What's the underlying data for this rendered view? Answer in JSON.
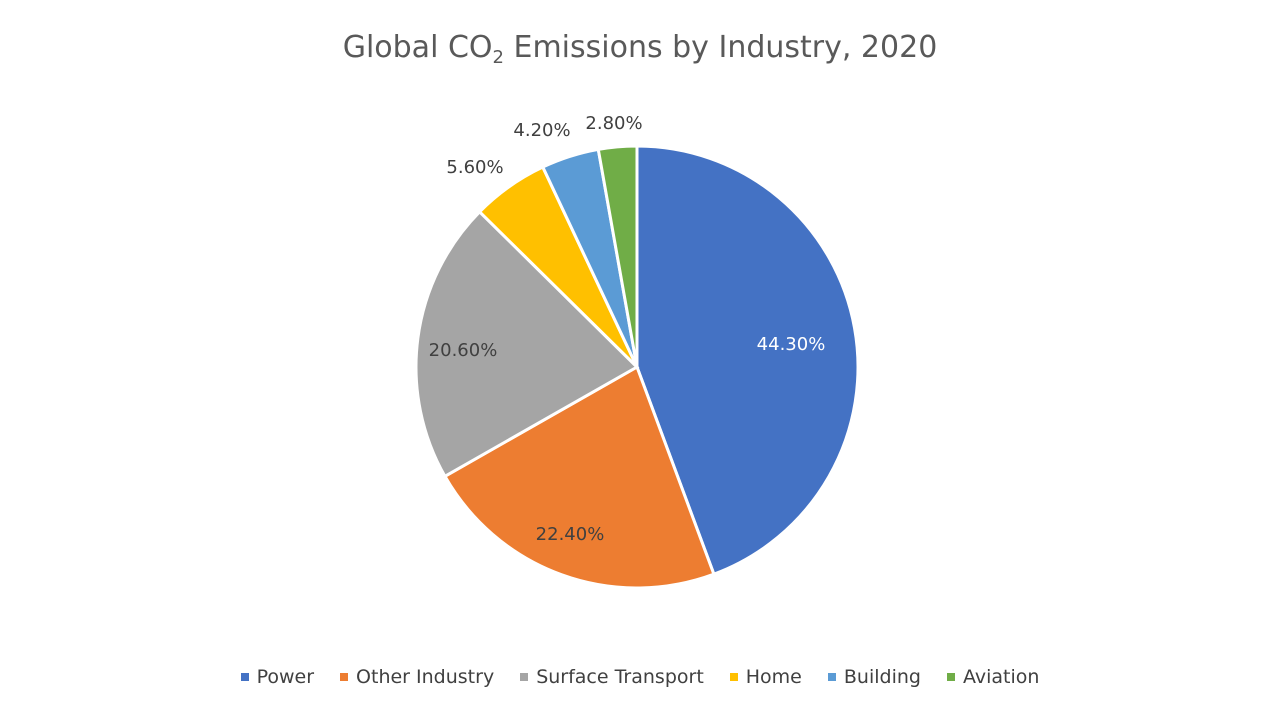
{
  "chart_data": {
    "type": "pie",
    "title": {
      "prefix": "Global CO",
      "subscript": "2",
      "suffix": " Emissions by Industry, 2020"
    },
    "categories": [
      "Power",
      "Other Industry",
      "Surface Transport",
      "Home",
      "Building",
      "Aviation"
    ],
    "values": [
      44.3,
      22.4,
      20.6,
      5.6,
      4.2,
      2.8
    ],
    "labels": [
      "44.30%",
      "22.40%",
      "20.60%",
      "5.60%",
      "4.20%",
      "2.80%"
    ],
    "colors": [
      "#4472C4",
      "#ED7D31",
      "#A5A5A5",
      "#FFC000",
      "#5B9BD5",
      "#70AD47"
    ],
    "label_colors": [
      "#ffffff",
      "#404040",
      "#404040",
      "#404040",
      "#404040",
      "#404040"
    ],
    "legend_position": "bottom"
  }
}
